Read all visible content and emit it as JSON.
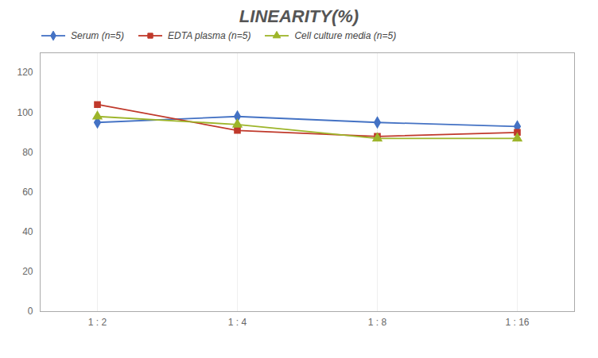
{
  "chart_data": {
    "type": "line",
    "title": "LINEARITY(%)",
    "categories": [
      "1 : 2",
      "1 : 4",
      "1 : 8",
      "1 : 16"
    ],
    "series": [
      {
        "name": "Serum (n=5)",
        "color": "#4472C4",
        "marker": "diamond",
        "values": [
          95,
          98,
          95,
          93
        ]
      },
      {
        "name": "EDTA plasma (n=5)",
        "color": "#C0392B",
        "marker": "square",
        "values": [
          104,
          91,
          88,
          90
        ]
      },
      {
        "name": "Cell culture media (n=5)",
        "color": "#9DB52A",
        "marker": "triangle",
        "values": [
          98,
          94,
          87,
          87
        ]
      }
    ],
    "ylim": [
      0,
      130
    ],
    "yticks": [
      0,
      20,
      40,
      60,
      80,
      100,
      120
    ],
    "grid": "x",
    "legend": "upper left"
  }
}
